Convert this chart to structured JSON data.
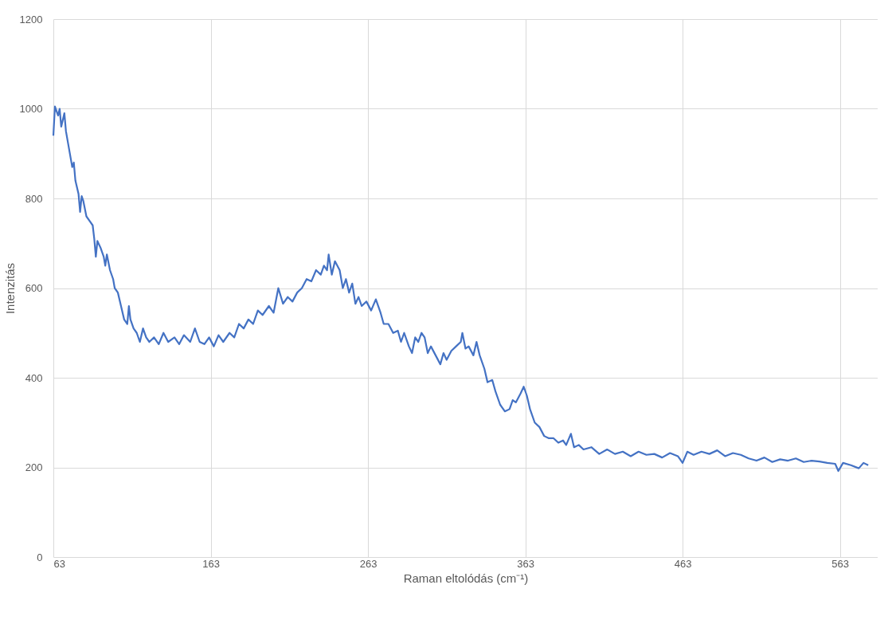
{
  "chart_data": {
    "type": "line",
    "xlabel": "Raman eltolódás (cm⁻¹)",
    "ylabel": "Intenzitás",
    "xlim": [
      63,
      587
    ],
    "xticks": [
      63,
      163,
      263,
      363,
      463,
      563
    ],
    "ylim": [
      0,
      1200
    ],
    "yticks": [
      0,
      200,
      400,
      600,
      800,
      1000,
      1200
    ],
    "grid": true,
    "marker": "none",
    "line_style": "solid",
    "series": [
      {
        "color": "#4472c4",
        "x": [
          63,
          64,
          66,
          67,
          68,
          70,
          71,
          73,
          74,
          75,
          76,
          77,
          79,
          80,
          81,
          82,
          84,
          86,
          88,
          89,
          90,
          91,
          93,
          95,
          96,
          97,
          99,
          101,
          102,
          104,
          106,
          108,
          110,
          111,
          112,
          114,
          116,
          118,
          120,
          122,
          124,
          127,
          130,
          133,
          136,
          140,
          143,
          146,
          150,
          153,
          156,
          159,
          162,
          165,
          168,
          171,
          175,
          178,
          181,
          184,
          187,
          190,
          193,
          196,
          200,
          203,
          206,
          209,
          212,
          215,
          218,
          221,
          224,
          227,
          230,
          233,
          235,
          237,
          238,
          240,
          242,
          245,
          247,
          249,
          251,
          253,
          255,
          257,
          259,
          262,
          265,
          268,
          271,
          273,
          276,
          279,
          282,
          284,
          286,
          289,
          291,
          293,
          295,
          297,
          299,
          301,
          303,
          306,
          309,
          311,
          313,
          316,
          319,
          322,
          323,
          325,
          327,
          330,
          332,
          334,
          337,
          339,
          342,
          344,
          347,
          350,
          353,
          355,
          357,
          360,
          362,
          364,
          366,
          369,
          372,
          375,
          378,
          381,
          384,
          387,
          389,
          392,
          394,
          397,
          400,
          405,
          410,
          415,
          420,
          425,
          430,
          435,
          440,
          445,
          450,
          455,
          460,
          463,
          466,
          470,
          475,
          480,
          485,
          490,
          495,
          500,
          505,
          510,
          515,
          520,
          525,
          530,
          535,
          540,
          545,
          550,
          555,
          560,
          562,
          565,
          570,
          575,
          578,
          581
        ],
        "values": [
          940,
          1005,
          985,
          1000,
          960,
          990,
          950,
          910,
          890,
          870,
          880,
          840,
          810,
          770,
          805,
          795,
          760,
          750,
          740,
          710,
          670,
          705,
          690,
          670,
          650,
          675,
          640,
          620,
          600,
          590,
          560,
          530,
          520,
          560,
          530,
          510,
          500,
          480,
          510,
          490,
          480,
          490,
          475,
          500,
          480,
          490,
          475,
          495,
          480,
          510,
          480,
          475,
          490,
          470,
          495,
          480,
          500,
          490,
          520,
          510,
          530,
          520,
          550,
          540,
          560,
          545,
          600,
          565,
          580,
          570,
          590,
          600,
          620,
          615,
          640,
          630,
          650,
          640,
          675,
          630,
          660,
          640,
          600,
          620,
          590,
          610,
          565,
          580,
          560,
          570,
          550,
          575,
          545,
          520,
          520,
          500,
          505,
          480,
          500,
          470,
          455,
          490,
          480,
          500,
          490,
          455,
          470,
          450,
          430,
          455,
          440,
          460,
          470,
          480,
          500,
          465,
          470,
          450,
          480,
          450,
          420,
          390,
          395,
          370,
          340,
          325,
          330,
          350,
          345,
          365,
          380,
          360,
          330,
          300,
          290,
          270,
          265,
          265,
          255,
          260,
          250,
          275,
          245,
          250,
          240,
          245,
          230,
          240,
          230,
          235,
          225,
          235,
          228,
          230,
          222,
          232,
          225,
          210,
          235,
          228,
          235,
          230,
          238,
          225,
          232,
          228,
          220,
          215,
          222,
          212,
          218,
          215,
          220,
          212,
          215,
          213,
          210,
          208,
          192,
          210,
          205,
          198,
          210,
          205
        ]
      }
    ]
  }
}
